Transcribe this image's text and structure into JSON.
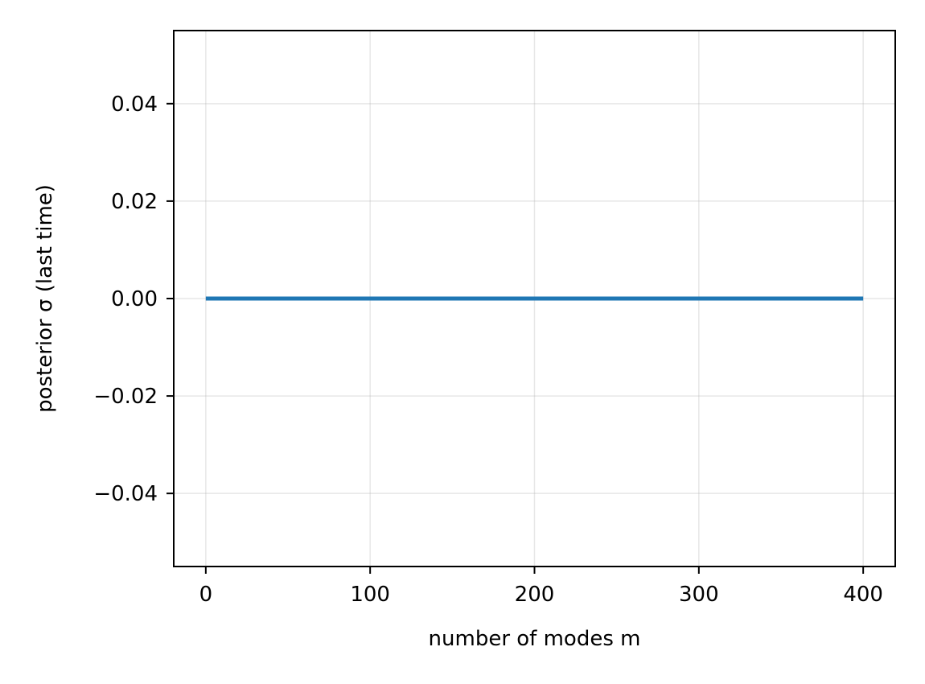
{
  "chart_data": {
    "type": "line",
    "title": "",
    "xlabel": "number of modes m",
    "ylabel": "posterior σ (last time)",
    "xlim": [
      -19.5,
      419.5
    ],
    "ylim": [
      -0.055,
      0.055
    ],
    "x_ticks": [
      0,
      100,
      200,
      300,
      400
    ],
    "x_tick_labels": [
      "0",
      "100",
      "200",
      "300",
      "400"
    ],
    "y_ticks": [
      0.04,
      0.02,
      0.0,
      -0.02,
      -0.04
    ],
    "y_tick_labels": [
      "0.04",
      "0.02",
      "0.00",
      "−0.02",
      "−0.04"
    ],
    "grid": true,
    "legend": "none",
    "series": [
      {
        "color": "#1f77b4",
        "x": [
          0,
          100,
          200,
          300,
          400
        ],
        "y": [
          0,
          0,
          0,
          0,
          0
        ]
      }
    ]
  }
}
